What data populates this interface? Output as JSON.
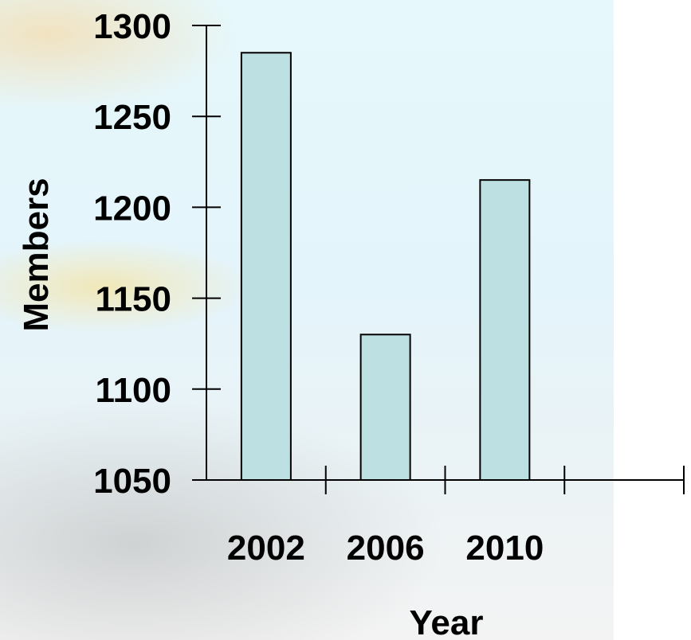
{
  "chart_data": {
    "type": "bar",
    "categories": [
      "2002",
      "2006",
      "2010"
    ],
    "values": [
      1285,
      1130,
      1215
    ],
    "xlabel": "Year",
    "ylabel": "Members",
    "ylim": [
      1050,
      1300
    ],
    "yticks": [
      "1300",
      "1250",
      "1200",
      "1150",
      "1100",
      "1050"
    ],
    "grid": false,
    "bar_color": "#bde0e3",
    "bar_stroke": "#000000"
  }
}
